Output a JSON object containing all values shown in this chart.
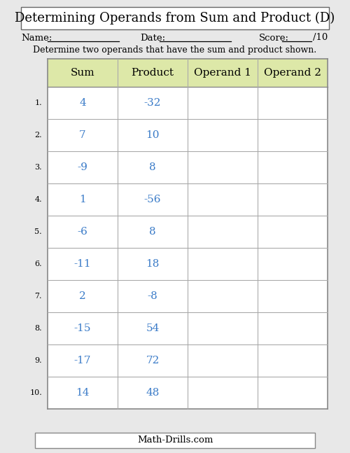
{
  "title": "Determining Operands from Sum and Product (D)",
  "instruction": "Determine two operands that have the sum and product shown.",
  "name_label": "Name:",
  "date_label": "Date:",
  "score_label": "Score:",
  "score_denom": "/10",
  "footer": "Math-Drills.com",
  "col_headers": [
    "Sum",
    "Product",
    "Operand 1",
    "Operand 2"
  ],
  "sums": [
    "4",
    "7",
    "-9",
    "1",
    "-6",
    "-11",
    "2",
    "-15",
    "-17",
    "14"
  ],
  "products": [
    "-32",
    "10",
    "8",
    "-56",
    "8",
    "18",
    "-8",
    "54",
    "72",
    "48"
  ],
  "sum_color": "#3a7bc8",
  "product_color": "#3a7bc8",
  "header_bg": "#dde8a8",
  "border_color": "#aaaaaa",
  "outer_border_color": "#888888",
  "bg_color": "#e8e8e8",
  "white": "#ffffff",
  "row_count": 10,
  "font_size_title": 13,
  "font_size_header": 11,
  "font_size_data": 11,
  "font_size_label": 9.5,
  "font_size_instr": 9,
  "font_size_footer": 9.5,
  "font_size_rownum": 8
}
